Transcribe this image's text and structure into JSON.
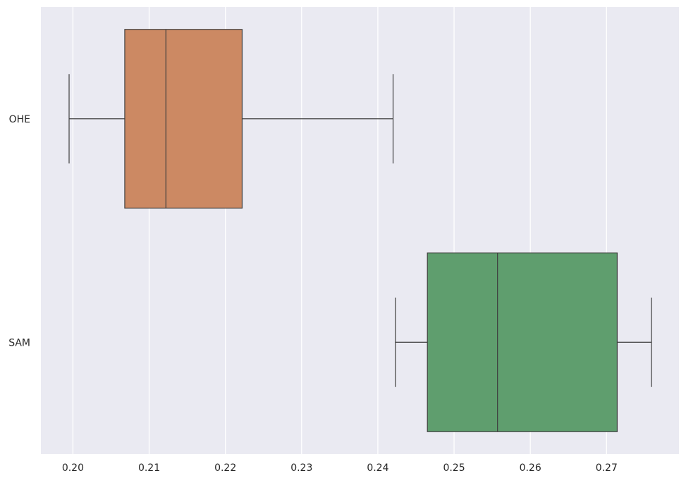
{
  "chart_data": {
    "type": "boxplot",
    "orientation": "horizontal",
    "title": "",
    "xlabel": "",
    "ylabel": "",
    "xlim": [
      0.1958,
      0.2795
    ],
    "x_ticks": [
      0.2,
      0.21,
      0.22,
      0.23,
      0.24,
      0.25,
      0.26,
      0.27
    ],
    "x_tick_labels": [
      "0.20",
      "0.21",
      "0.22",
      "0.23",
      "0.24",
      "0.25",
      "0.26",
      "0.27"
    ],
    "grid": "vertical",
    "categories": [
      "OHE",
      "SAM"
    ],
    "boxes": [
      {
        "category": "OHE",
        "whisker_low": 0.1995,
        "q1": 0.2068,
        "median": 0.2122,
        "q3": 0.2222,
        "whisker_high": 0.242,
        "color": "#cc8963"
      },
      {
        "category": "SAM",
        "whisker_low": 0.2423,
        "q1": 0.2465,
        "median": 0.2557,
        "q3": 0.2714,
        "whisker_high": 0.2759,
        "color": "#5f9e6e"
      }
    ],
    "background_color": "#eaeaf2",
    "line_color": "#3f3f3f"
  }
}
